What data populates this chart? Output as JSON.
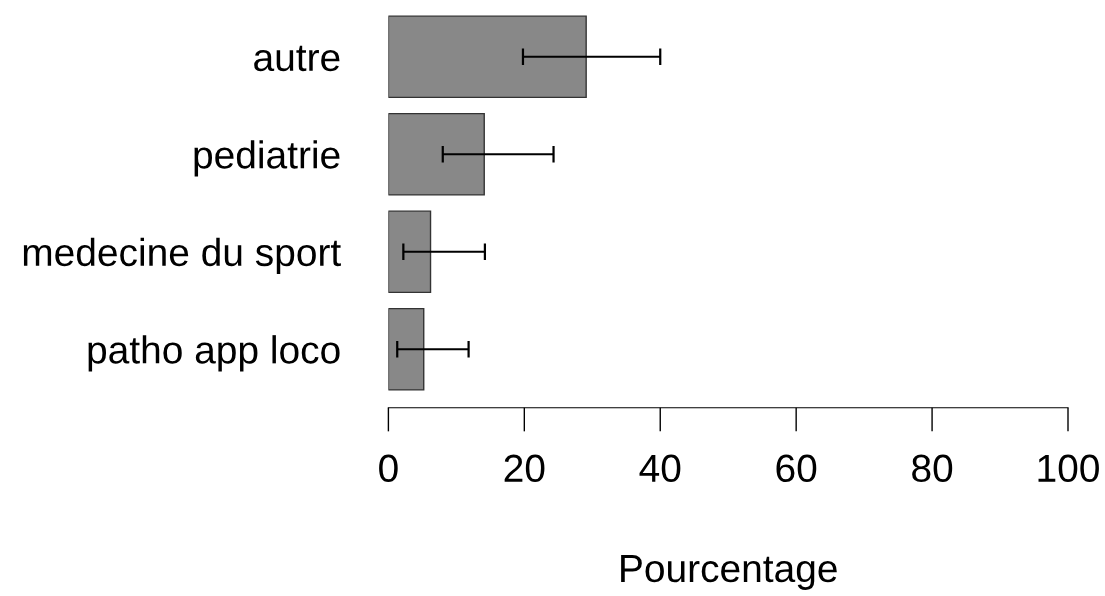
{
  "chart_data": {
    "type": "bar",
    "orientation": "horizontal",
    "xlabel": "Pourcentage",
    "categories": [
      "autre",
      "pediatrie",
      "medecine du sport",
      "patho app loco"
    ],
    "values": [
      29.1,
      14.1,
      6.2,
      5.2
    ],
    "color": "#888888",
    "errors": [
      [
        19.8,
        40.0
      ],
      [
        8.0,
        24.3
      ],
      [
        2.2,
        14.2
      ],
      [
        1.3,
        11.8
      ]
    ],
    "xlim": [
      0,
      100
    ],
    "xticks": [
      0,
      20,
      40,
      60,
      80,
      100
    ]
  }
}
